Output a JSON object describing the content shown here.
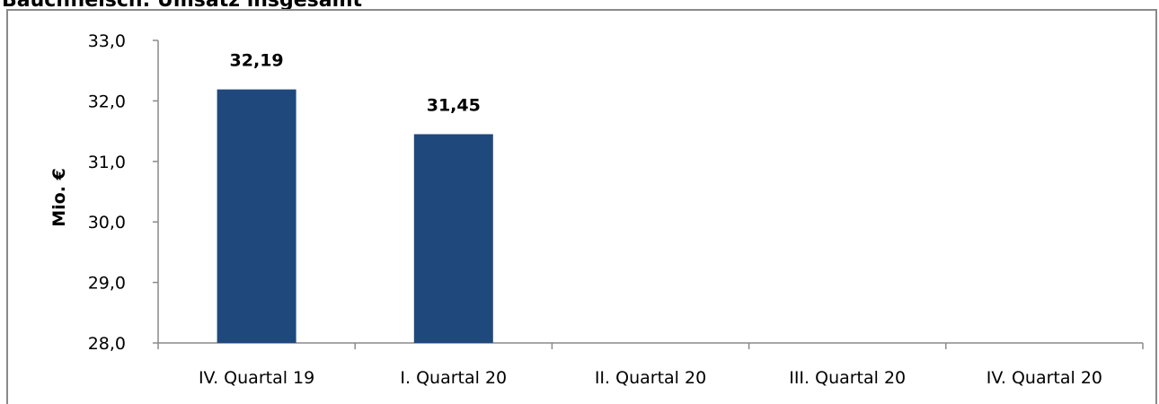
{
  "chart_data": {
    "type": "bar",
    "title": "",
    "title_partial": "Bauchfleisch: Umsatz insgesamt",
    "ylabel": "Mio. €",
    "xlabel": "",
    "ylim": [
      28.0,
      33.0
    ],
    "yticks": [
      "28,0",
      "29,0",
      "30,0",
      "31,0",
      "32,0",
      "33,0"
    ],
    "categories": [
      "IV. Quartal 19",
      "I. Quartal 20",
      "II. Quartal 20",
      "III. Quartal 20",
      "IV. Quartal 20"
    ],
    "values": [
      32.19,
      31.45,
      null,
      null,
      null
    ],
    "value_labels": [
      "32,19",
      "31,45",
      "",
      "",
      ""
    ],
    "bar_color": "#1f497d",
    "grid": false,
    "legend": "none"
  }
}
